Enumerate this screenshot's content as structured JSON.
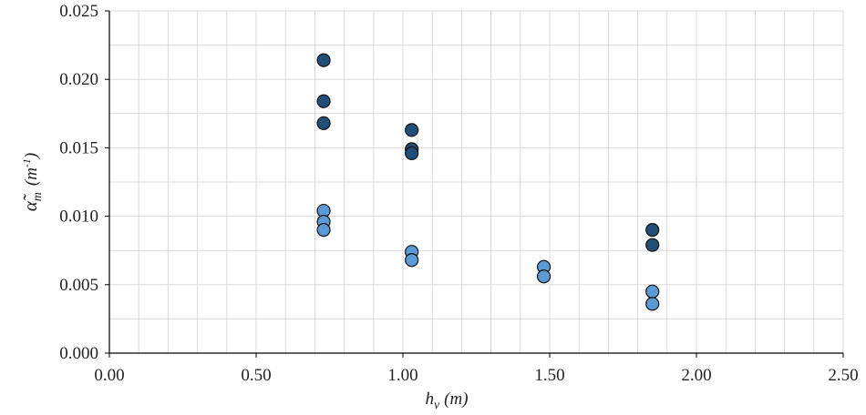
{
  "chart_data": {
    "type": "scatter",
    "xlabel_main": "h",
    "xlabel_sub": "v",
    "xlabel_unit": "(m)",
    "ylabel_main": "α̃",
    "ylabel_sub": "m",
    "ylabel_unit_base": "(m",
    "ylabel_unit_exp": "-1",
    "ylabel_unit_close": ")",
    "xlim": [
      0,
      2.5
    ],
    "ylim": [
      0,
      0.025
    ],
    "x_ticks": [
      "0.00",
      "0.50",
      "1.00",
      "1.50",
      "2.00",
      "2.50"
    ],
    "y_ticks": [
      "0.000",
      "0.005",
      "0.010",
      "0.015",
      "0.020",
      "0.025"
    ],
    "grid": true,
    "colors": {
      "dark": "#1f4e79",
      "light": "#5b9bd5",
      "grid": "#d9d9d9",
      "axis": "#000000"
    },
    "series": [
      {
        "color": "#1f4e79",
        "points": [
          [
            0.73,
            0.0214
          ],
          [
            0.73,
            0.0184
          ],
          [
            0.73,
            0.0168
          ],
          [
            1.03,
            0.0163
          ],
          [
            1.03,
            0.0149
          ],
          [
            1.03,
            0.0146
          ],
          [
            1.85,
            0.009
          ],
          [
            1.85,
            0.0079
          ]
        ]
      },
      {
        "color": "#5b9bd5",
        "points": [
          [
            0.73,
            0.0104
          ],
          [
            0.73,
            0.0096
          ],
          [
            0.73,
            0.009
          ],
          [
            1.03,
            0.0074
          ],
          [
            1.03,
            0.0068
          ],
          [
            1.48,
            0.0063
          ],
          [
            1.48,
            0.0056
          ],
          [
            1.85,
            0.0045
          ],
          [
            1.85,
            0.0036
          ]
        ]
      }
    ]
  }
}
